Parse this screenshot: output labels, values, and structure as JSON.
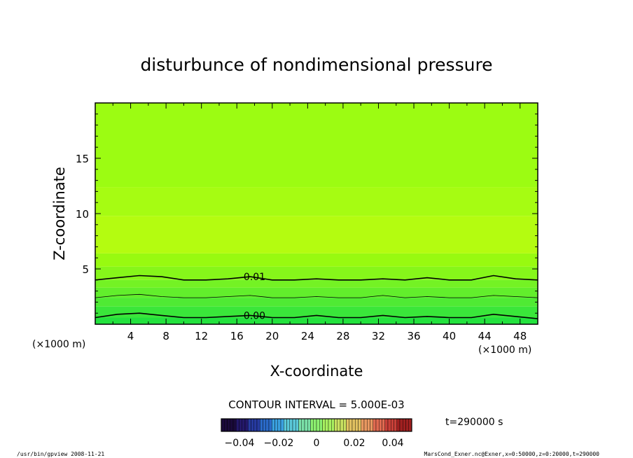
{
  "chart_data": {
    "type": "heatmap",
    "title": "disturbunce of nondimensional pressure",
    "xlabel": "X-coordinate",
    "ylabel": "Z-coordinate",
    "x_unit": "(×1000 m)",
    "y_unit": "(×1000 m)",
    "xlim": [
      0,
      50
    ],
    "ylim": [
      0,
      20
    ],
    "x_ticks": [
      4,
      8,
      12,
      16,
      20,
      24,
      28,
      32,
      36,
      40,
      44,
      48
    ],
    "y_ticks": [
      5,
      10,
      15
    ],
    "contour_interval_label": "CONTOUR INTERVAL = 5.000E-03",
    "time_label": "t=290000 s",
    "colorbar_ticks": [
      "−0.04",
      "−0.02",
      "0",
      "0.02",
      "0.04"
    ],
    "colorbar_range": [
      -0.05,
      0.05
    ],
    "contours": [
      {
        "level": 0.01,
        "label": "0.01",
        "z_km": [
          4.0,
          4.2,
          4.4,
          4.3,
          4.0,
          4.0,
          4.1,
          4.3,
          4.0,
          4.0,
          4.1,
          4.0,
          4.0,
          4.1,
          4.0,
          4.2,
          4.0,
          4.0,
          4.4,
          4.1,
          4.0
        ]
      },
      {
        "level": 0.005,
        "label": "",
        "z_km": [
          2.4,
          2.6,
          2.7,
          2.5,
          2.4,
          2.4,
          2.5,
          2.6,
          2.4,
          2.4,
          2.5,
          2.4,
          2.4,
          2.6,
          2.4,
          2.5,
          2.4,
          2.4,
          2.6,
          2.5,
          2.4
        ]
      },
      {
        "level": 0.0,
        "label": "0.00",
        "z_km": [
          0.6,
          0.9,
          1.0,
          0.8,
          0.6,
          0.6,
          0.7,
          0.8,
          0.6,
          0.6,
          0.8,
          0.6,
          0.6,
          0.8,
          0.6,
          0.7,
          0.6,
          0.6,
          0.9,
          0.7,
          0.5
        ]
      }
    ],
    "fill_bands": [
      {
        "z_bottom": 0,
        "z_top": 0.6,
        "color": "#24e23e"
      },
      {
        "z_bottom": 0.6,
        "z_top": 1.6,
        "color": "#3ae63a"
      },
      {
        "z_bottom": 1.6,
        "z_top": 2.4,
        "color": "#4fea34"
      },
      {
        "z_bottom": 2.4,
        "z_top": 3.3,
        "color": "#62ee2c"
      },
      {
        "z_bottom": 3.3,
        "z_top": 4.0,
        "color": "#74f224"
      },
      {
        "z_bottom": 4.0,
        "z_top": 5.2,
        "color": "#86f61a"
      },
      {
        "z_bottom": 5.2,
        "z_top": 6.4,
        "color": "#98fa10"
      },
      {
        "z_bottom": 6.4,
        "z_top": 9.8,
        "color": "#b4fc10"
      },
      {
        "z_bottom": 9.8,
        "z_top": 12.4,
        "color": "#a6fc12"
      },
      {
        "z_bottom": 12.4,
        "z_top": 20,
        "color": "#9cfc12"
      }
    ],
    "colorbar_colors": [
      "#1a0a3a",
      "#24186a",
      "#263aa0",
      "#2a6ac8",
      "#3aa0e0",
      "#5ac8d8",
      "#7ae0a8",
      "#8cf070",
      "#a8f060",
      "#c8e060",
      "#e0c060",
      "#e89860",
      "#e06a50",
      "#c84038",
      "#a02020"
    ]
  },
  "footer": {
    "left": "/usr/bin/gpview   2008-11-21",
    "right": "MarsCond_Exner.nc@Exner,x=0:50000,z=0:20000,t=290000"
  }
}
